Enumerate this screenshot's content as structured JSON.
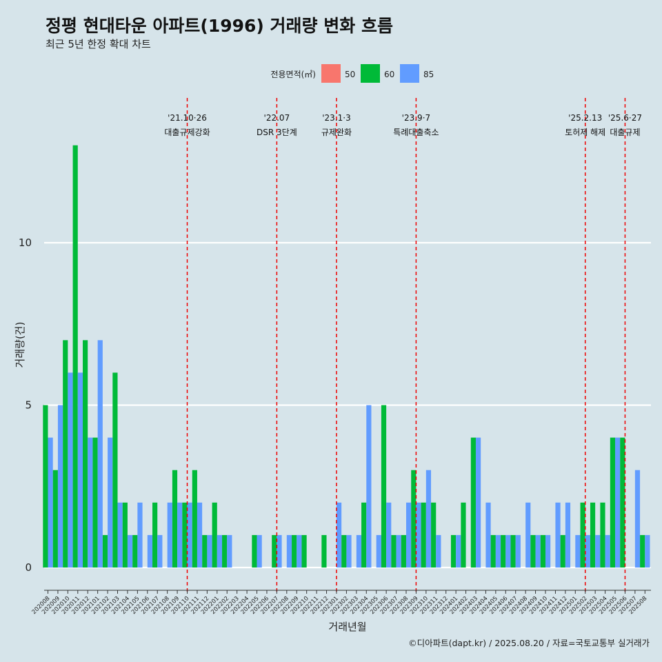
{
  "title": "정평 현대타운 아파트(1996) 거래량 변화 흐름",
  "subtitle": "최근 5년 한정 확대 차트",
  "caption": "©디아파트(dapt.kr) / 2025.08.20 / 자료=국토교통부 실거래가",
  "chart_data": {
    "type": "bar",
    "xlabel": "거래년월",
    "ylabel": "거래량(건)",
    "ylim": [
      -0.5,
      13.5
    ],
    "yticks": [
      0,
      5,
      10
    ],
    "grid": "horizontal",
    "legend": {
      "title": "전용면적(㎡)",
      "placement": "top-center",
      "entries": [
        {
          "name": "50",
          "color": "#F8766D"
        },
        {
          "name": "60",
          "color": "#00BA38"
        },
        {
          "name": "85",
          "color": "#619CFF"
        }
      ]
    },
    "categories": [
      "202008",
      "202009",
      "202010",
      "202011",
      "202012",
      "202101",
      "202102",
      "202103",
      "202104",
      "202105",
      "202106",
      "202107",
      "202108",
      "202109",
      "202110",
      "202111",
      "202112",
      "202201",
      "202202",
      "202203",
      "202204",
      "202205",
      "202206",
      "202207",
      "202208",
      "202209",
      "202210",
      "202211",
      "202212",
      "202301",
      "202302",
      "202303",
      "202304",
      "202305",
      "202306",
      "202307",
      "202308",
      "202309",
      "202310",
      "202311",
      "202312",
      "202401",
      "202402",
      "202403",
      "202404",
      "202405",
      "202406",
      "202407",
      "202408",
      "202409",
      "202410",
      "202411",
      "202412",
      "202501",
      "202502",
      "202503",
      "202504",
      "202505",
      "202506",
      "202507",
      "202508"
    ],
    "series": [
      {
        "name": "50",
        "color": "#F8766D",
        "values": [
          0,
          0,
          0,
          0,
          0,
          0,
          0,
          0,
          0,
          0,
          0,
          0,
          0,
          0,
          0,
          0,
          0,
          0,
          0,
          0,
          0,
          0,
          0,
          0,
          0,
          0,
          0,
          0,
          0,
          0,
          0,
          0,
          0,
          0,
          0,
          0,
          0,
          0,
          0,
          0,
          0,
          0,
          0,
          0,
          0,
          0,
          0,
          0,
          0,
          0,
          0,
          0,
          0,
          0,
          0,
          0,
          0,
          0,
          0,
          0,
          0
        ]
      },
      {
        "name": "60",
        "color": "#00BA38",
        "values": [
          5,
          3,
          7,
          13,
          7,
          4,
          1,
          6,
          2,
          1,
          0,
          2,
          0,
          3,
          2,
          3,
          1,
          2,
          1,
          0,
          0,
          1,
          0,
          1,
          0,
          1,
          1,
          0,
          1,
          0,
          1,
          0,
          2,
          0,
          5,
          1,
          1,
          3,
          2,
          2,
          0,
          1,
          2,
          4,
          0,
          1,
          1,
          1,
          0,
          1,
          1,
          0,
          1,
          0,
          2,
          2,
          2,
          4,
          4,
          0,
          1
        ]
      },
      {
        "name": "85",
        "color": "#619CFF",
        "values": [
          4,
          5,
          6,
          6,
          4,
          7,
          4,
          2,
          1,
          2,
          1,
          1,
          2,
          2,
          2,
          2,
          1,
          1,
          1,
          0,
          0,
          1,
          0,
          1,
          1,
          1,
          0,
          0,
          0,
          2,
          1,
          1,
          5,
          1,
          2,
          1,
          2,
          2,
          3,
          1,
          0,
          1,
          0,
          4,
          2,
          1,
          1,
          1,
          2,
          1,
          1,
          2,
          2,
          1,
          1,
          1,
          1,
          4,
          0,
          3,
          1
        ]
      }
    ],
    "events": [
      {
        "index": 14,
        "date": "'21.10·26",
        "label": "대출규제강화"
      },
      {
        "index": 23,
        "date": "'22.07",
        "label": "DSR 3단계"
      },
      {
        "index": 29,
        "date": "'23.1·3",
        "label": "규제완화"
      },
      {
        "index": 37,
        "date": "'23.9·7",
        "label": "특례대출축소"
      },
      {
        "index": 54,
        "date": "'25.2.13",
        "label": "토허제 해제"
      },
      {
        "index": 58,
        "date": "'25.6·27",
        "label": "대출규제"
      }
    ]
  }
}
